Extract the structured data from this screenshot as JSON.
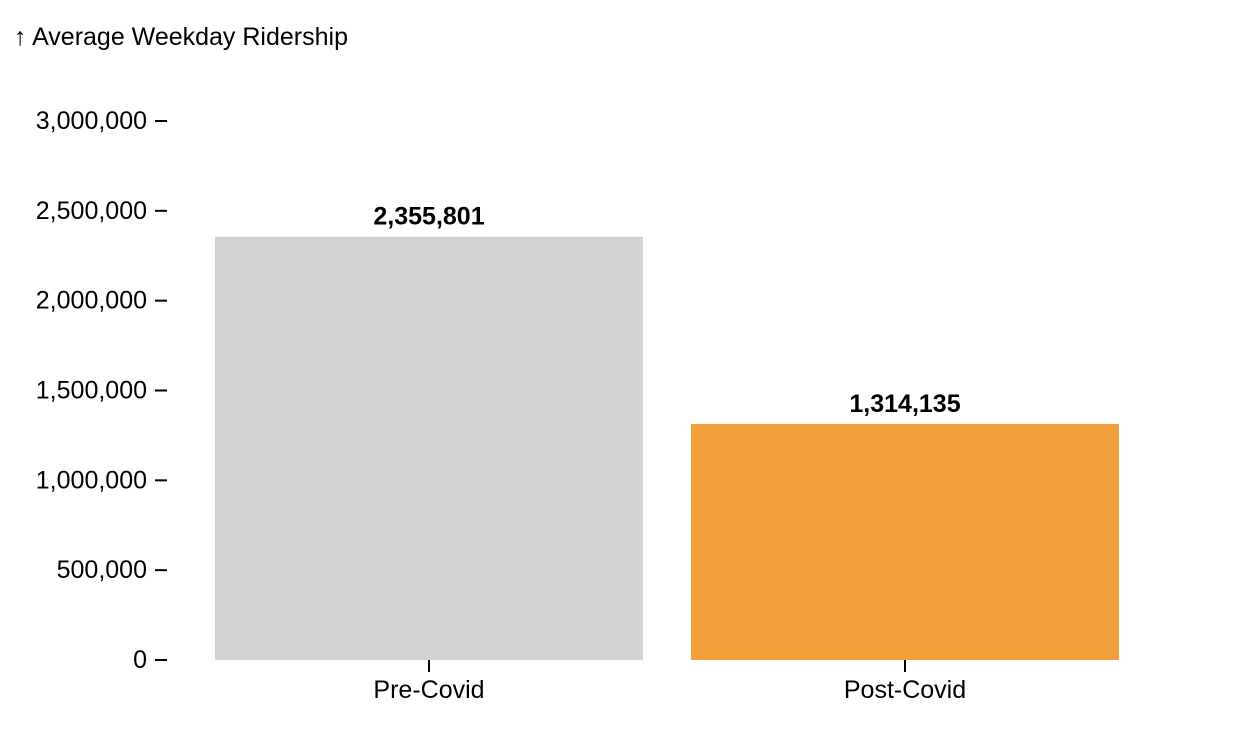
{
  "chart_data": {
    "type": "bar",
    "ylabel": "↑ Average Weekday Ridership",
    "categories": [
      "Pre-Covid",
      "Post-Covid"
    ],
    "values": [
      2355801,
      1314135
    ],
    "value_labels": [
      "2,355,801",
      "1,314,135"
    ],
    "bar_colors": [
      "#d3d3d3",
      "#f2a03a"
    ],
    "ylim": [
      0,
      3000000
    ],
    "yticks": [
      0,
      500000,
      1000000,
      1500000,
      2000000,
      2500000,
      3000000
    ],
    "ytick_labels": [
      "0",
      "500,000",
      "1,000,000",
      "1,500,000",
      "2,000,000",
      "2,500,000",
      "3,000,000"
    ],
    "grid": false,
    "legend": "none"
  }
}
